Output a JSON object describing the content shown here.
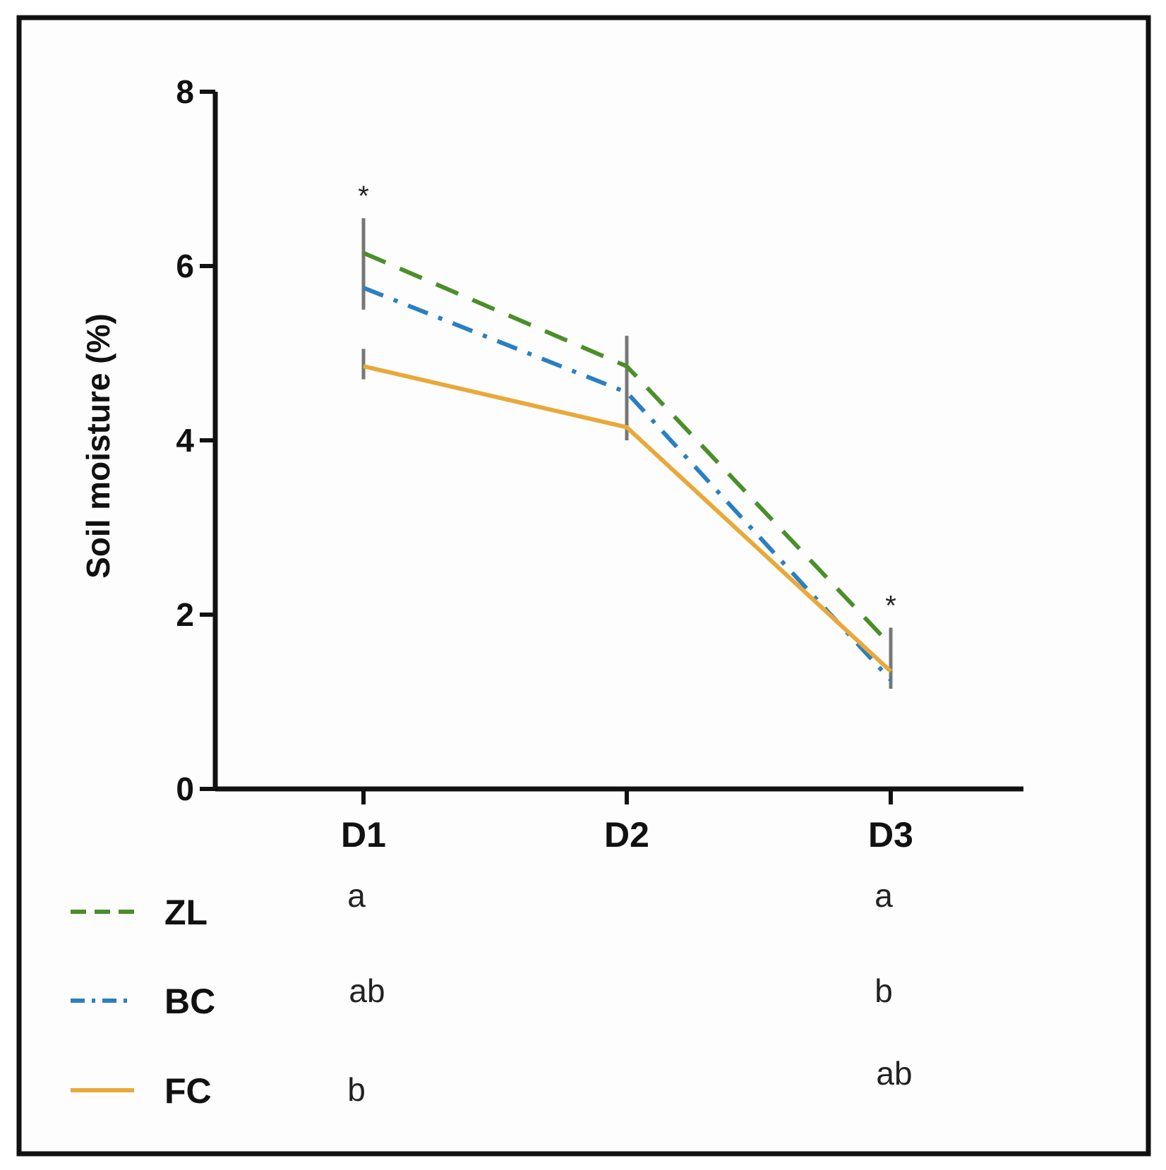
{
  "chart_data": {
    "type": "line",
    "title": "",
    "xlabel": "",
    "ylabel": "Soil moisture (%)",
    "ylim": [
      0,
      8
    ],
    "yticks": [
      "0",
      "2",
      "4",
      "6",
      "8"
    ],
    "categories": [
      "D1",
      "D2",
      "D3"
    ],
    "series": [
      {
        "name": "ZL",
        "values": [
          6.15,
          4.85,
          1.65
        ],
        "color": "#4a8f2a",
        "dash": "dashed"
      },
      {
        "name": "BC",
        "values": [
          5.75,
          4.55,
          1.25
        ],
        "color": "#2a7fc1",
        "dash": "dashdot"
      },
      {
        "name": "FC",
        "values": [
          4.85,
          4.15,
          1.35
        ],
        "color": "#e8a93a",
        "dash": "solid"
      }
    ],
    "error_bars": [
      {
        "category": "D1",
        "low": 5.5,
        "high": 6.55
      },
      {
        "category": "D1",
        "low": 4.7,
        "high": 5.05
      },
      {
        "category": "D2",
        "low": 4.0,
        "high": 5.2
      },
      {
        "category": "D3",
        "low": 1.15,
        "high": 1.85
      }
    ],
    "significance_markers": [
      {
        "category": "D1",
        "label": "*"
      },
      {
        "category": "D3",
        "label": "*"
      }
    ],
    "group_letters": [
      {
        "series": "ZL",
        "category": "D1",
        "label": "a"
      },
      {
        "series": "ZL",
        "category": "D3",
        "label": "a"
      },
      {
        "series": "BC",
        "category": "D1",
        "label": "ab"
      },
      {
        "series": "BC",
        "category": "D3",
        "label": "b"
      },
      {
        "series": "FC",
        "category": "D1",
        "label": "b"
      },
      {
        "series": "FC",
        "category": "D3",
        "label": "ab"
      }
    ],
    "legend_position": "bottom-left"
  }
}
